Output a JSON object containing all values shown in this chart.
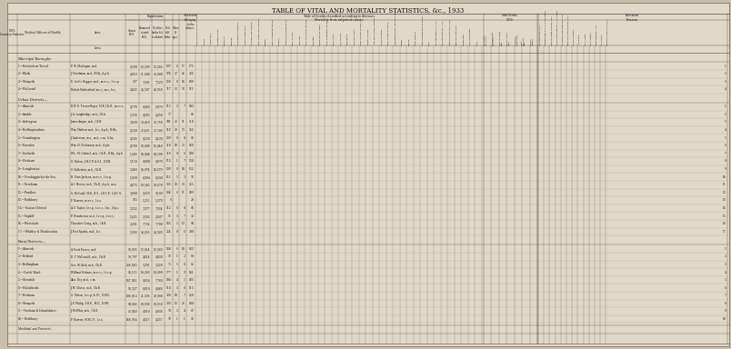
{
  "title": "TABLE OF VITAL AND MORTALITY STATISTICS, &c., 1933",
  "bg_color": "#c8bfaa",
  "paper_color": "#e0d8c8",
  "text_color": "#1a1008",
  "line_color": "#555040",
  "title_fs": 5.0,
  "data_fs": 2.2,
  "header_fs": 2.1,
  "rows": [
    {
      "section": "Municipal Boroughs",
      "num": "1.",
      "name": "Berwick-on-Tweed",
      "officer": "P. W. Maclagan, m.d.",
      "acres": "6,399",
      "census": "12,299",
      "est": "12,230",
      "births": "197",
      "stillb": "6",
      "other": "17",
      "nettd": "175",
      "idx": "1"
    },
    {
      "section": "Municipal Boroughs",
      "num": "2.",
      "name": "Blyth",
      "officer": "J. Steedman, m.d., B.Hy., d.p.h.",
      "acres": "4,319",
      "census": "31,680",
      "est": "33,080",
      "births": "574",
      "stillb": "27",
      "other": "45",
      "nettd": "422",
      "idx": "2"
    },
    {
      "section": "Municipal Boroughs",
      "num": "3.",
      "name": "Morpeth",
      "officer": "E. Leslie Dagger, m.d., m.r.c.s., l.r.c.p.",
      "acres": "327",
      "census": "7,391",
      "est": "7,529",
      "births": "136",
      "stillb": "8",
      "other": "16",
      "nettd": "109",
      "idx": "3"
    },
    {
      "section": "Municipal Boroughs",
      "num": "4.",
      "name": "Wallsend",
      "officer": "Robert Rutherford (m.c.), m.s., b.s.,",
      "acres": "3,422",
      "census": "44,587",
      "est": "43,950",
      "births": "717",
      "stillb": "32",
      "other": "56",
      "nettd": "511",
      "idx": "4"
    },
    {
      "section": "Urban Districts—",
      "num": "1.",
      "name": "Alnwick",
      "officer": "B.W. E. Trevor-Roper, M.B.,Ch.B., m.r.c.s.,",
      "acres": "4,778",
      "census": "6,883",
      "est": "6,973",
      "births": "115",
      "stillb": "3",
      "other": "7",
      "nettd": "103",
      "idx": "1"
    },
    {
      "section": "Urban Districts—",
      "num": "2.",
      "name": "Amble",
      "officer": "J. A. Loughridge, m.b., Ch.b.",
      "acres": "1,258",
      "census": "4,205",
      "est": "4,238",
      "births": "77",
      "stillb": "",
      "other": "",
      "nettd": "60",
      "idx": "2"
    },
    {
      "section": "Urban Districts—",
      "num": "3.",
      "name": "Ashington",
      "officer": "James Angus, m.b., Ch.B.",
      "acres": "3,039",
      "census": "29,418",
      "est": "29,760",
      "births": "581",
      "stillb": "22",
      "other": "51",
      "nettd": "310",
      "idx": "3"
    },
    {
      "section": "Urban Districts—",
      "num": "4.",
      "name": "Bedlingtonshire",
      "officer": "Wm. Hudson m.d., b.s., d.p.h., B.Hy.",
      "acres": "8,520",
      "census": "27,461",
      "est": "27,500",
      "births": "516",
      "stillb": "20",
      "other": "53",
      "nettd": "352",
      "idx": "4"
    },
    {
      "section": "Urban Districts—",
      "num": "5.",
      "name": "Cramlington",
      "officer": "J. Anderson, m.a., m.d., c.m., b.hy.",
      "acres": "4,583",
      "census": "8,238",
      "est": "8,128",
      "births": "129",
      "stillb": "6",
      "other": "8",
      "nettd": "83",
      "idx": "5"
    },
    {
      "section": "Urban Districts—",
      "num": "6.",
      "name": "Earsdon",
      "officer": "Wm. H. Dickinson, m.d., d.p.h.",
      "acres": "4,709",
      "census": "13,086",
      "est": "13,040",
      "births": "210",
      "stillb": "10",
      "other": "23",
      "nettd": "160",
      "idx": "6"
    },
    {
      "section": "Urban Districts—",
      "num": "7.",
      "name": "Gosforth",
      "officer": "W.L. M. Gabriel, m.b., Ch.B., B.Hy., d.p.h.",
      "acres": "1,303",
      "census": "18,044",
      "est": "18,290",
      "births": "216",
      "stillb": "8",
      "other": "6",
      "nettd": "188",
      "idx": "7"
    },
    {
      "section": "Urban Districts—",
      "num": "8.",
      "name": "Hexham",
      "officer": "G. Patton, L.R.C.P. & S.I., D.P.H.",
      "acres": "5,150",
      "census": "8,888",
      "est": "8,876",
      "births": "112",
      "stillb": "1",
      "other": "7",
      "nettd": "128",
      "idx": "8"
    },
    {
      "section": "Urban Districts—",
      "num": "9.",
      "name": "Longbenton",
      "officer": "S. Fullerton, m.b., Ch.B.",
      "acres": "5,348",
      "census": "14,074",
      "est": "14,670",
      "births": "199",
      "stillb": "8",
      "other": "10",
      "nettd": "152",
      "idx": "9"
    },
    {
      "section": "Urban Districts—",
      "num": "10.",
      "name": "Newbiggin-by-the-Sea",
      "officer": "H. Hart-Jackson, m.r.c.s., l.r.c.p.",
      "acres": "1,028",
      "census": "6,904",
      "est": "6,938",
      "births": "111",
      "stillb": "5",
      "other": "2",
      "nettd": "56",
      "idx": "10"
    },
    {
      "section": "Urban Districts—",
      "num": "11.",
      "name": "Newburn",
      "officer": "A. I. Messer, m.b., Ch.B., d.p.h., m.a.",
      "acres": "4,672",
      "census": "19,542",
      "est": "19,670",
      "births": "333",
      "stillb": "19",
      "other": "29",
      "nettd": "255",
      "idx": "11"
    },
    {
      "section": "Urban Districts—",
      "num": "12.",
      "name": "Prudhoe",
      "officer": "G. McCoull, M.B., B.S., L.R.C.P., L.R.C.S.",
      "acres": "3,888",
      "census": "9,259",
      "est": "9,109",
      "births": "134",
      "stillb": "6",
      "other": "11",
      "nettd": "109",
      "idx": "12"
    },
    {
      "section": "Urban Districts—",
      "num": "13.",
      "name": "Rothbury",
      "officer": "F. Barrow, m.r.c.s., l.s.a.",
      "acres": "972",
      "census": "1,255",
      "est": "1,270",
      "births": "6",
      "stillb": "",
      "other": "",
      "nettd": "20",
      "idx": "13"
    },
    {
      "section": "Urban Districts—",
      "num": "14.",
      "name": "Seaton Delaval",
      "officer": "A. S. Taylor, l.r.c.p., l.r.c.s., l.m., l.f.p.s.",
      "acres": "5,352",
      "census": "7,377",
      "est": "7,334",
      "births": "112",
      "stillb": "6",
      "other": "8",
      "nettd": "86",
      "idx": "14"
    },
    {
      "section": "Urban Districts—",
      "num": "15.",
      "name": "Seghill",
      "officer": "P. Henderson, m.d., l.r.c.p., l.r.c.s.,",
      "acres": "1,425",
      "census": "2,582",
      "est": "2,687",
      "births": "51",
      "stillb": "3",
      "other": "7",
      "nettd": "34",
      "idx": "15"
    },
    {
      "section": "Urban Districts—",
      "num": "16.",
      "name": "Weetslade",
      "officer": "Theodore Craig, m.b., Ch.B.",
      "acres": "2,201",
      "census": "7,734",
      "est": "7,708",
      "births": "143",
      "stillb": "5",
      "other": "12",
      "nettd": "84",
      "idx": "16"
    },
    {
      "section": "Urban Districts—",
      "num": "17.",
      "name": "Whitley & Monkseaton",
      "officer": "J. Peel Sparks, m.d., b.s.",
      "acres": "1,983",
      "census": "24,210",
      "est": "24,920",
      "births": "254",
      "stillb": "8",
      "other": "6",
      "nettd": "280",
      "idx": "17"
    },
    {
      "section": "Rural Districts—",
      "num": "1.",
      "name": "Alnwick",
      "officer": "A. Scott Purves, m.d.",
      "acres": "93,035",
      "census": "12,614",
      "est": "12,360",
      "births": "148",
      "stillb": "6",
      "other": "10",
      "nettd": "163",
      "idx": "1"
    },
    {
      "section": "Rural Districts—",
      "num": "2.",
      "name": "Belford",
      "officer": "D. T. McDonald, m.b., Ch.B.",
      "acres": "39,797",
      "census": "4,614",
      "est": "4,438",
      "births": "56",
      "stillb": "1",
      "other": "2",
      "nettd": "60",
      "idx": "2"
    },
    {
      "section": "Rural Districts—",
      "num": "3.",
      "name": "Bellingham",
      "officer": "Geo. W. Kirk, m.b., Ch.B.",
      "acres": "246,645",
      "census": "5,291",
      "est": "5,228",
      "births": "75",
      "stillb": "5",
      "other": "8",
      "nettd": "65",
      "idx": "3"
    },
    {
      "section": "Rural Districts—",
      "num": "4.",
      "name": "Castle Ward",
      "officer": "Willmot Holmes, m.r.c.s., l.r.c.p.",
      "acres": "85,113",
      "census": "14,266",
      "est": "14,800",
      "births": "177",
      "stillb": "1",
      "other": "9",
      "nettd": "141",
      "idx": "4"
    },
    {
      "section": "Rural Districts—",
      "num": "5.",
      "name": "Glendale",
      "officer": "Alex. Dey, m.b., c.m.",
      "acres": "147,941",
      "census": "8,054",
      "est": "7,760",
      "births": "104",
      "stillb": "4",
      "other": "5",
      "nettd": "103",
      "idx": "5"
    },
    {
      "section": "Rural Districts—",
      "num": "6.",
      "name": "Haltwhistle",
      "officer": "J. M. Glasse, m.b., Ch.B.",
      "acres": "96,327",
      "census": "8,910",
      "est": "8,466",
      "births": "118",
      "stillb": "3",
      "other": "6",
      "nettd": "115",
      "idx": "6"
    },
    {
      "section": "Rural Districts—",
      "num": "7.",
      "name": "Hexham",
      "officer": "G. Patton, l.r.c.p. & S.I., D.P.H.",
      "acres": "196,812",
      "census": "21,306",
      "est": "20,900",
      "births": "260",
      "stillb": "10",
      "other": "7",
      "nettd": "258",
      "idx": "7"
    },
    {
      "section": "Rural Districts—",
      "num": "8.",
      "name": "Morpeth",
      "officer": "J. P. Philip, O.B.E., M.D., D.P.H.",
      "acres": "84,843",
      "census": "19,096",
      "est": "19,050",
      "births": "339",
      "stillb": "13",
      "other": "26",
      "nettd": "188",
      "idx": "8"
    },
    {
      "section": "Rural Districts—",
      "num": "9.",
      "name": "Norham & Islandshires",
      "officer": "J. McWhir, m.b., Ch.B.",
      "acres": "47,049",
      "census": "4,918",
      "est": "4,936",
      "births": "70",
      "stillb": "2",
      "other": "4",
      "nettd": "67",
      "idx": "9"
    },
    {
      "section": "Rural Districts—",
      "num": "10.",
      "name": "Rothbury",
      "officer": "F. Barrow, M.R.C.S., l.s.a.",
      "acres": "166,914",
      "census": "4,513",
      "est": "4,357",
      "births": "56",
      "stillb": "1",
      "other": "1",
      "nettd": "52",
      "idx": "10"
    }
  ],
  "col_headers_rotated": [
    "Typhoid and para-typhoid Fevers.",
    "Measles.",
    "Scarlet Fever.",
    "Whooping Cough.",
    "Diphtheria.",
    "Influenza.",
    "Encephalitis Lethargica.",
    "Cerebro-spinal Fever.",
    "Pulmonary Tuberculosis.",
    "Other Tuberculous Diseases.",
    "Syphilis.",
    "Cancer, Malignant Disease.",
    "Diabetes.",
    "Cerebral Haemorrhage, &c.",
    "Heart Disease.",
    "Aneurysm.",
    "Other Circulatory Diseases.",
    "Bronchitis.",
    "Pneumonia (all forms).",
    "Other Respiratory Diseases.",
    "Peptic Ulcer.",
    "Diarrhoea &c.",
    "Appendicitis.",
    "Cirrhosis of Liver.",
    "Other Diseases of Liver, etc.",
    "Urinary Diseases.",
    "Acute and Chronic Nephritis.",
    "Puerperal Sepsis.",
    "Other Puerperal Causes.",
    "Congenital Debility, Premature Birth.",
    "Senility.",
    "Suicide.",
    "Other Violence.",
    "Causes ill-defined or unknown.",
    "Total.",
    "Live Birth Rate per 1,000.",
    "Still Birth Rate per 1,000.",
    "Nett Death Rate per 1,000.",
    "Infant Mortality Rate.",
    "Poliomyelitis.",
    "Polio Encephalitis.",
    "Total."
  ],
  "sb_headers": [
    "Live Births per 1,000.",
    "Stillbirth Rate per 1,000 Live Births.",
    "Nett Still-Birth Rate per 1,000.",
    "Excess Death Rate per 1,000 Living.",
    "Proportion Death Rate per 1,000.",
    "Infant Mortality Rate per 1,000.",
    "Whence Notified.",
    "Attack Rate.",
    "No. of Cases.",
    "No. of Deaths.",
    "Death Rate per 1,000.",
    "No. Notified.",
    "Infectious Diseases. Yes/No."
  ]
}
